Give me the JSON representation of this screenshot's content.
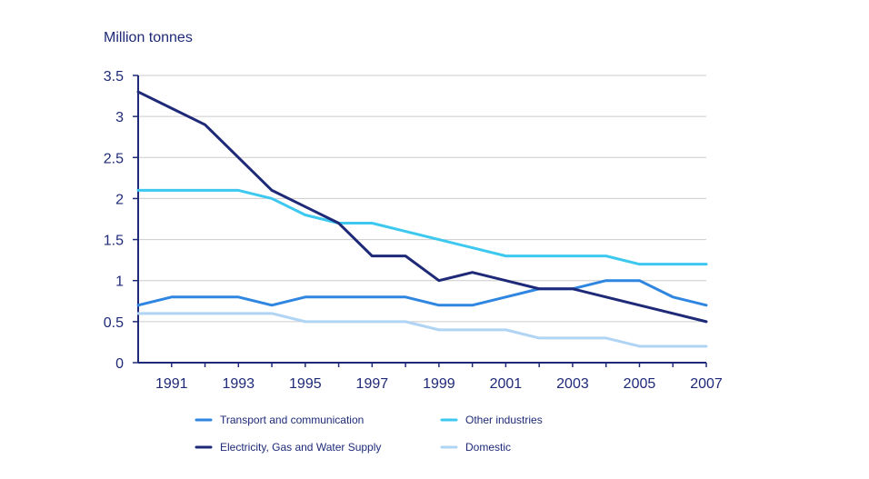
{
  "chart_data": {
    "type": "line",
    "title": "",
    "xlabel": "",
    "ylabel": "Million tonnes",
    "xlim": [
      1990,
      2007
    ],
    "ylim": [
      0,
      3.5
    ],
    "x": [
      1990,
      1991,
      1992,
      1993,
      1994,
      1995,
      1996,
      1997,
      1998,
      1999,
      2000,
      2001,
      2002,
      2003,
      2004,
      2005,
      2006,
      2007
    ],
    "x_ticks": [
      1991,
      1993,
      1995,
      1997,
      1999,
      2001,
      2003,
      2005,
      2007
    ],
    "x_tick_labels": [
      "1991",
      "1993",
      "1995",
      "1997",
      "1999",
      "2001",
      "2003",
      "2005",
      "2007"
    ],
    "y_ticks": [
      0,
      0.5,
      1,
      1.5,
      2,
      2.5,
      3,
      3.5
    ],
    "y_tick_labels": [
      "0",
      "0.5",
      "1",
      "1.5",
      "2",
      "2.5",
      "3",
      "3.5"
    ],
    "grid": "horizontal",
    "legend_position": "bottom",
    "series": [
      {
        "name": "Transport and communication",
        "color": "#2f86e0",
        "values": [
          0.7,
          0.8,
          0.8,
          0.8,
          0.7,
          0.8,
          0.8,
          0.8,
          0.8,
          0.7,
          0.7,
          0.8,
          0.9,
          0.9,
          1.0,
          1.0,
          0.8,
          0.7
        ]
      },
      {
        "name": "Other industries",
        "color": "#3dc8f0",
        "values": [
          2.1,
          2.1,
          2.1,
          2.1,
          2.0,
          1.8,
          1.7,
          1.7,
          1.6,
          1.5,
          1.4,
          1.3,
          1.3,
          1.3,
          1.3,
          1.2,
          1.2,
          1.2
        ]
      },
      {
        "name": "Electricity, Gas and Water Supply",
        "color": "#1e2a78",
        "values": [
          3.3,
          3.1,
          2.9,
          2.5,
          2.1,
          1.9,
          1.7,
          1.3,
          1.3,
          1.0,
          1.1,
          1.0,
          0.9,
          0.9,
          0.8,
          0.7,
          0.6,
          0.5
        ]
      },
      {
        "name": "Domestic",
        "color": "#b0d4f4",
        "values": [
          0.6,
          0.6,
          0.6,
          0.6,
          0.6,
          0.5,
          0.5,
          0.5,
          0.5,
          0.4,
          0.4,
          0.4,
          0.3,
          0.3,
          0.3,
          0.2,
          0.2,
          0.2
        ]
      }
    ],
    "legend_order": [
      0,
      1,
      2,
      3
    ]
  }
}
